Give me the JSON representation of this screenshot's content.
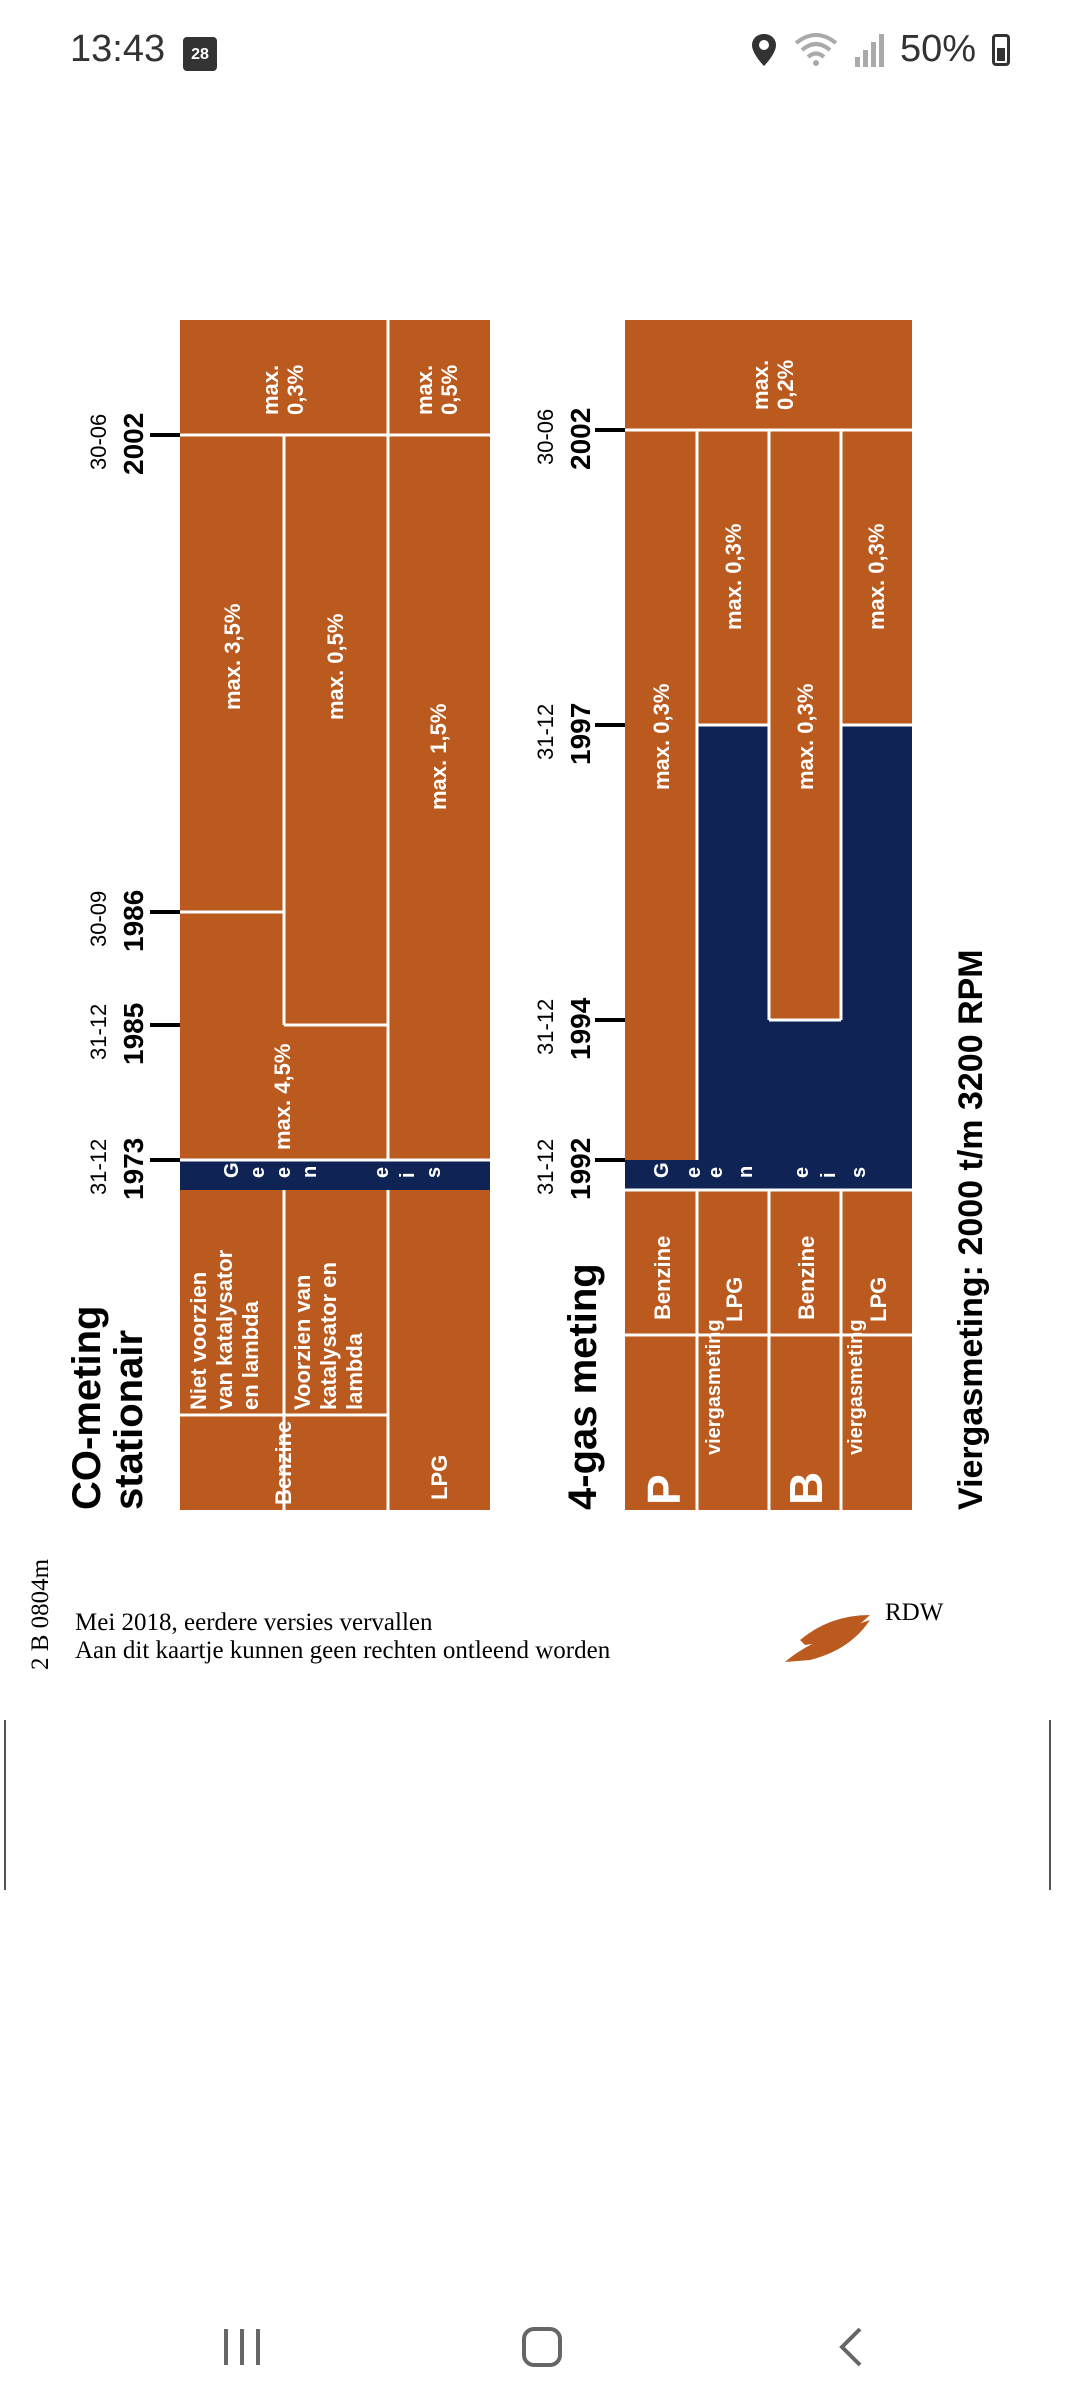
{
  "status": {
    "time": "13:43",
    "calendar_day": "28",
    "battery": "50%"
  },
  "card": {
    "co_title": "CO-meting stationair",
    "co_title_line1": "CO-meting",
    "co_title_line2": "stationair",
    "gas_title": "4-gas meting",
    "viergas": "Viergasmeting: 2000 t/m 3200 RPM",
    "doc_code": "2 B 0804m",
    "footer_line1": "Mei 2018, eerdere versies vervallen",
    "footer_line2": "Aan dit kaartje kunnen geen rechten ontleend worden",
    "brand": "RDW",
    "co_dates": [
      {
        "day": "31-12",
        "year": "1973"
      },
      {
        "day": "31-12",
        "year": "1985"
      },
      {
        "day": "30-09",
        "year": "1986"
      },
      {
        "day": "30-06",
        "year": "2002"
      }
    ],
    "gas_dates": [
      {
        "day": "31-12",
        "year": "1992"
      },
      {
        "day": "31-12",
        "year": "1994"
      },
      {
        "day": "31-12",
        "year": "1997"
      },
      {
        "day": "30-06",
        "year": "2002"
      }
    ],
    "co_labels": {
      "benzine": "Benzine",
      "niet_line1": "Niet voorzien",
      "niet_line2": "van katalysator",
      "niet_line3": "en lambda",
      "voor_line1": "Voorzien van",
      "voor_line2": "katalysator en",
      "voor_line3": "lambda",
      "lpg": "LPG"
    },
    "gas_labels": {
      "p_letter": "P",
      "b_letter": "B",
      "viergasmeting": "viergasmeting",
      "benzine": "Benzine",
      "lpg": "LPG"
    },
    "geen_eis_letters": [
      "G",
      "e",
      "e",
      "n",
      "e",
      "i",
      "s"
    ],
    "co_values": {
      "row1_a": "max. 4,5%",
      "row1_b": "max. 3,5%",
      "row2": "max. 0,5%",
      "benzine_2002_line1": "max.",
      "benzine_2002_line2": "0,3%",
      "lpg_a": "max. 1,5%",
      "lpg_2002_line1": "max.",
      "lpg_2002_line2": "0,5%"
    },
    "gas_values": {
      "p_benzine": "max. 0,3%",
      "p_lpg": "max. 0,3%",
      "b_benzine": "max. 0,3%",
      "b_lpg": "max. 0,3%",
      "after_2002_line1": "max.",
      "after_2002_line2": "0,2%"
    }
  },
  "colors": {
    "orange": "#bb5a1f",
    "navy": "#0f2455",
    "white": "#ffffff"
  },
  "icons": [
    "calendar-icon",
    "location-icon",
    "wifi-icon",
    "signal-icon",
    "battery-icon",
    "recents-icon",
    "home-icon",
    "back-icon",
    "rdw-logo-icon"
  ]
}
